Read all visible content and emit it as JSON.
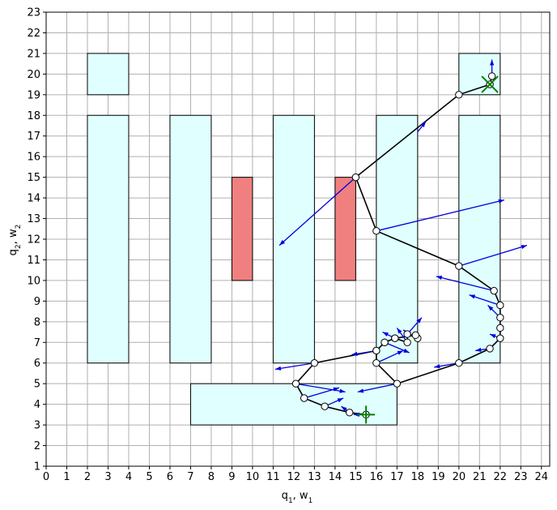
{
  "chart_data": {
    "type": "scatter",
    "xlabel_main": "q",
    "xlabel_sub1": "1",
    "xlabel_mid": ", w",
    "xlabel_sub2": "1",
    "ylabel_main": "q",
    "ylabel_sub1": "2",
    "ylabel_mid": ", w",
    "ylabel_sub2": "2",
    "xlim": [
      0,
      24.4
    ],
    "ylim": [
      1,
      23
    ],
    "xticks": [
      0,
      1,
      2,
      3,
      4,
      5,
      6,
      7,
      8,
      9,
      10,
      11,
      12,
      13,
      14,
      15,
      16,
      17,
      18,
      19,
      20,
      21,
      22,
      23,
      24
    ],
    "yticks": [
      1,
      2,
      3,
      4,
      5,
      6,
      7,
      8,
      9,
      10,
      11,
      12,
      13,
      14,
      15,
      16,
      17,
      18,
      19,
      20,
      21,
      22,
      23
    ],
    "grid": true,
    "colors": {
      "region_fill": "#e0ffff",
      "obstacle_fill": "#f08080",
      "path": "#000000",
      "vector": "#0000dd",
      "marker": "#008000",
      "grid": "#b0b0b0"
    },
    "regions": [
      {
        "x0": 2,
        "y0": 19,
        "x1": 4,
        "y1": 21
      },
      {
        "x0": 2,
        "y0": 6,
        "x1": 4,
        "y1": 18
      },
      {
        "x0": 6,
        "y0": 6,
        "x1": 8,
        "y1": 18
      },
      {
        "x0": 11,
        "y0": 6,
        "x1": 13,
        "y1": 18
      },
      {
        "x0": 16,
        "y0": 6,
        "x1": 18,
        "y1": 18
      },
      {
        "x0": 20,
        "y0": 6,
        "x1": 22,
        "y1": 18
      },
      {
        "x0": 20,
        "y0": 19,
        "x1": 22,
        "y1": 21
      },
      {
        "x0": 7,
        "y0": 3,
        "x1": 17,
        "y1": 5
      }
    ],
    "obstacles": [
      {
        "x0": 9,
        "y0": 10,
        "x1": 10,
        "y1": 15
      },
      {
        "x0": 14,
        "y0": 10,
        "x1": 15,
        "y1": 15
      }
    ],
    "path": [
      [
        15.5,
        3.5
      ],
      [
        14.7,
        3.6
      ],
      [
        13.5,
        3.9
      ],
      [
        12.5,
        4.3
      ],
      [
        12.1,
        5.0
      ],
      [
        13.0,
        6.0
      ],
      [
        16.0,
        6.6
      ],
      [
        16.4,
        7.0
      ],
      [
        16.9,
        7.2
      ],
      [
        17.5,
        7.0
      ],
      [
        17.5,
        7.4
      ],
      [
        18.0,
        7.2
      ],
      [
        17.9,
        7.35
      ],
      [
        16.9,
        7.2
      ],
      [
        16.4,
        7.0
      ],
      [
        16.0,
        6.6
      ],
      [
        16.0,
        6.0
      ],
      [
        17.0,
        5.0
      ],
      [
        20.0,
        6.0
      ],
      [
        21.5,
        6.7
      ],
      [
        22.0,
        7.2
      ],
      [
        22.0,
        7.7
      ],
      [
        22.0,
        8.2
      ],
      [
        22.0,
        8.8
      ],
      [
        21.7,
        9.5
      ],
      [
        20.0,
        10.7
      ],
      [
        16.0,
        12.4
      ],
      [
        15.0,
        15.0
      ],
      [
        20.0,
        19.0
      ],
      [
        21.5,
        19.5
      ],
      [
        21.6,
        19.9
      ]
    ],
    "vectors": [
      {
        "x": 15.5,
        "y": 3.5,
        "dx": -0.6,
        "dy": 0.0
      },
      {
        "x": 14.7,
        "y": 3.6,
        "dx": -0.4,
        "dy": 0.3
      },
      {
        "x": 13.5,
        "y": 3.9,
        "dx": 0.9,
        "dy": 0.4
      },
      {
        "x": 12.5,
        "y": 4.3,
        "dx": 1.7,
        "dy": 0.5
      },
      {
        "x": 12.1,
        "y": 5.0,
        "dx": 2.4,
        "dy": -0.4
      },
      {
        "x": 13.0,
        "y": 6.0,
        "dx": -1.9,
        "dy": -0.3
      },
      {
        "x": 16.0,
        "y": 6.6,
        "dx": -1.2,
        "dy": -0.2
      },
      {
        "x": 16.4,
        "y": 7.0,
        "dx": 1.2,
        "dy": -0.5
      },
      {
        "x": 16.9,
        "y": 7.2,
        "dx": -0.6,
        "dy": 0.3
      },
      {
        "x": 17.5,
        "y": 7.0,
        "dx": -0.5,
        "dy": 0.7
      },
      {
        "x": 17.5,
        "y": 7.4,
        "dx": 0.7,
        "dy": 0.8
      },
      {
        "x": 18.0,
        "y": 7.2,
        "dx": -0.7,
        "dy": 0.4
      },
      {
        "x": 16.0,
        "y": 6.0,
        "dx": 1.3,
        "dy": 0.6
      },
      {
        "x": 17.0,
        "y": 5.0,
        "dx": -1.9,
        "dy": -0.4
      },
      {
        "x": 20.0,
        "y": 6.0,
        "dx": -1.2,
        "dy": -0.2
      },
      {
        "x": 21.5,
        "y": 6.7,
        "dx": -0.7,
        "dy": -0.1
      },
      {
        "x": 22.0,
        "y": 7.2,
        "dx": -0.5,
        "dy": 0.2
      },
      {
        "x": 22.0,
        "y": 8.8,
        "dx": -1.5,
        "dy": 0.5
      },
      {
        "x": 21.7,
        "y": 9.5,
        "dx": -2.8,
        "dy": 0.7
      },
      {
        "x": 22.0,
        "y": 8.2,
        "dx": -0.6,
        "dy": 0.6
      },
      {
        "x": 20.0,
        "y": 10.7,
        "dx": 3.3,
        "dy": 1.0
      },
      {
        "x": 16.0,
        "y": 12.4,
        "dx": 6.2,
        "dy": 1.5
      },
      {
        "x": 15.0,
        "y": 15.0,
        "dx": -3.7,
        "dy": -3.3
      },
      {
        "x": 18.0,
        "y": 17.2,
        "dx": 0.4,
        "dy": 0.5
      },
      {
        "x": 21.6,
        "y": 19.9,
        "dx": 0.0,
        "dy": 0.8
      }
    ],
    "start": {
      "x": 15.5,
      "y": 3.5
    },
    "goal": {
      "x": 21.5,
      "y": 19.5
    }
  }
}
